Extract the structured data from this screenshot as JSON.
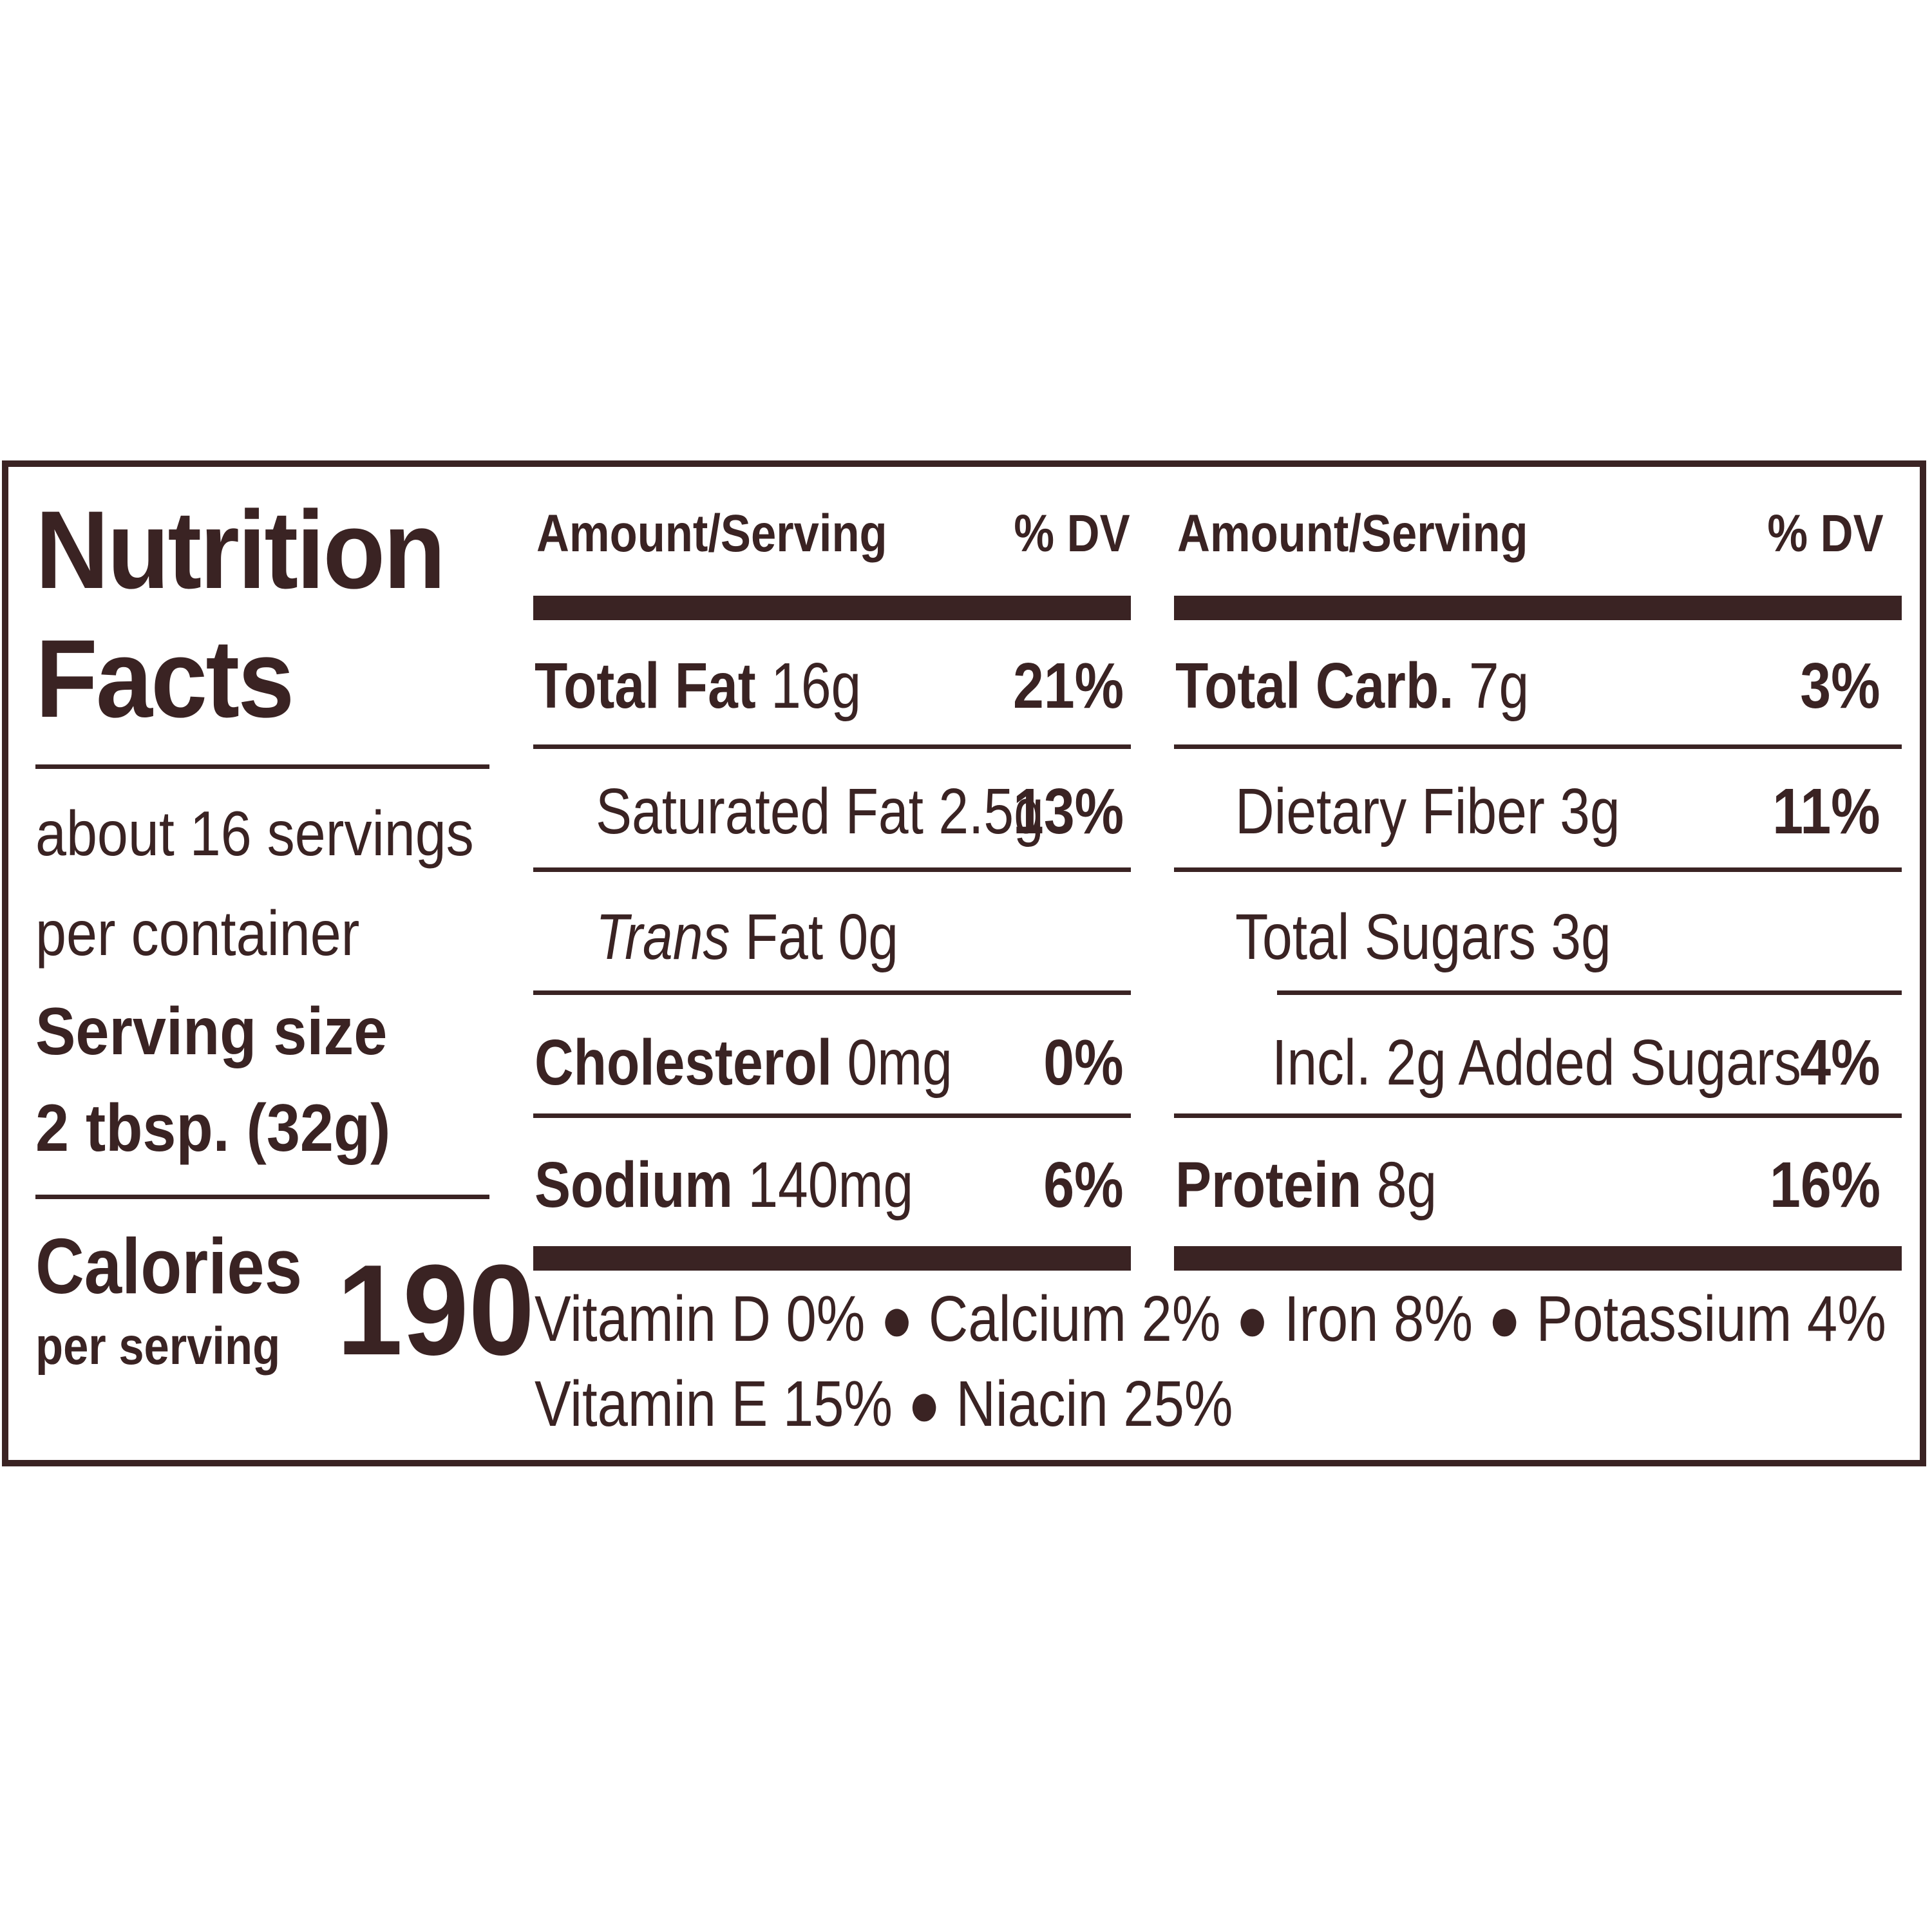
{
  "header": {
    "title_line1": "Nutrition",
    "title_line2": "Facts"
  },
  "servings": {
    "line1": "about 16 servings",
    "line2": "per container",
    "size_label": "Serving size",
    "size_value": "2 tbsp. (32g)"
  },
  "calories": {
    "label": "Calories",
    "sublabel": "per serving",
    "value": "190"
  },
  "columns": {
    "amount_header": "Amount/Serving",
    "dv_header": "% DV"
  },
  "left_rows": [
    {
      "name": "Total Fat",
      "amount": "16g",
      "dv": "21%"
    },
    {
      "name": "Saturated Fat",
      "amount": "2.5g",
      "dv": "13%"
    },
    {
      "name_italic": "Trans",
      "name": "Fat",
      "amount": "0g",
      "dv": ""
    },
    {
      "name": "Cholesterol",
      "amount": "0mg",
      "dv": "0%"
    },
    {
      "name": "Sodium",
      "amount": "140mg",
      "dv": "6%"
    }
  ],
  "right_rows": [
    {
      "name": "Total Carb.",
      "amount": "7g",
      "dv": "3%"
    },
    {
      "name": "Dietary Fiber",
      "amount": "3g",
      "dv": "11%"
    },
    {
      "name": "Total Sugars",
      "amount": "3g",
      "dv": ""
    },
    {
      "name": "Incl. 2g Added Sugars",
      "amount": "",
      "dv": "4%"
    },
    {
      "name": "Protein",
      "amount": "8g",
      "dv": "16%"
    }
  ],
  "vitamins": {
    "line1": "Vitamin D 0% ● Calcium 2% ● Iron 8% ● Potassium 4%",
    "line2": "Vitamin E 15% ● Niacin 25%"
  }
}
